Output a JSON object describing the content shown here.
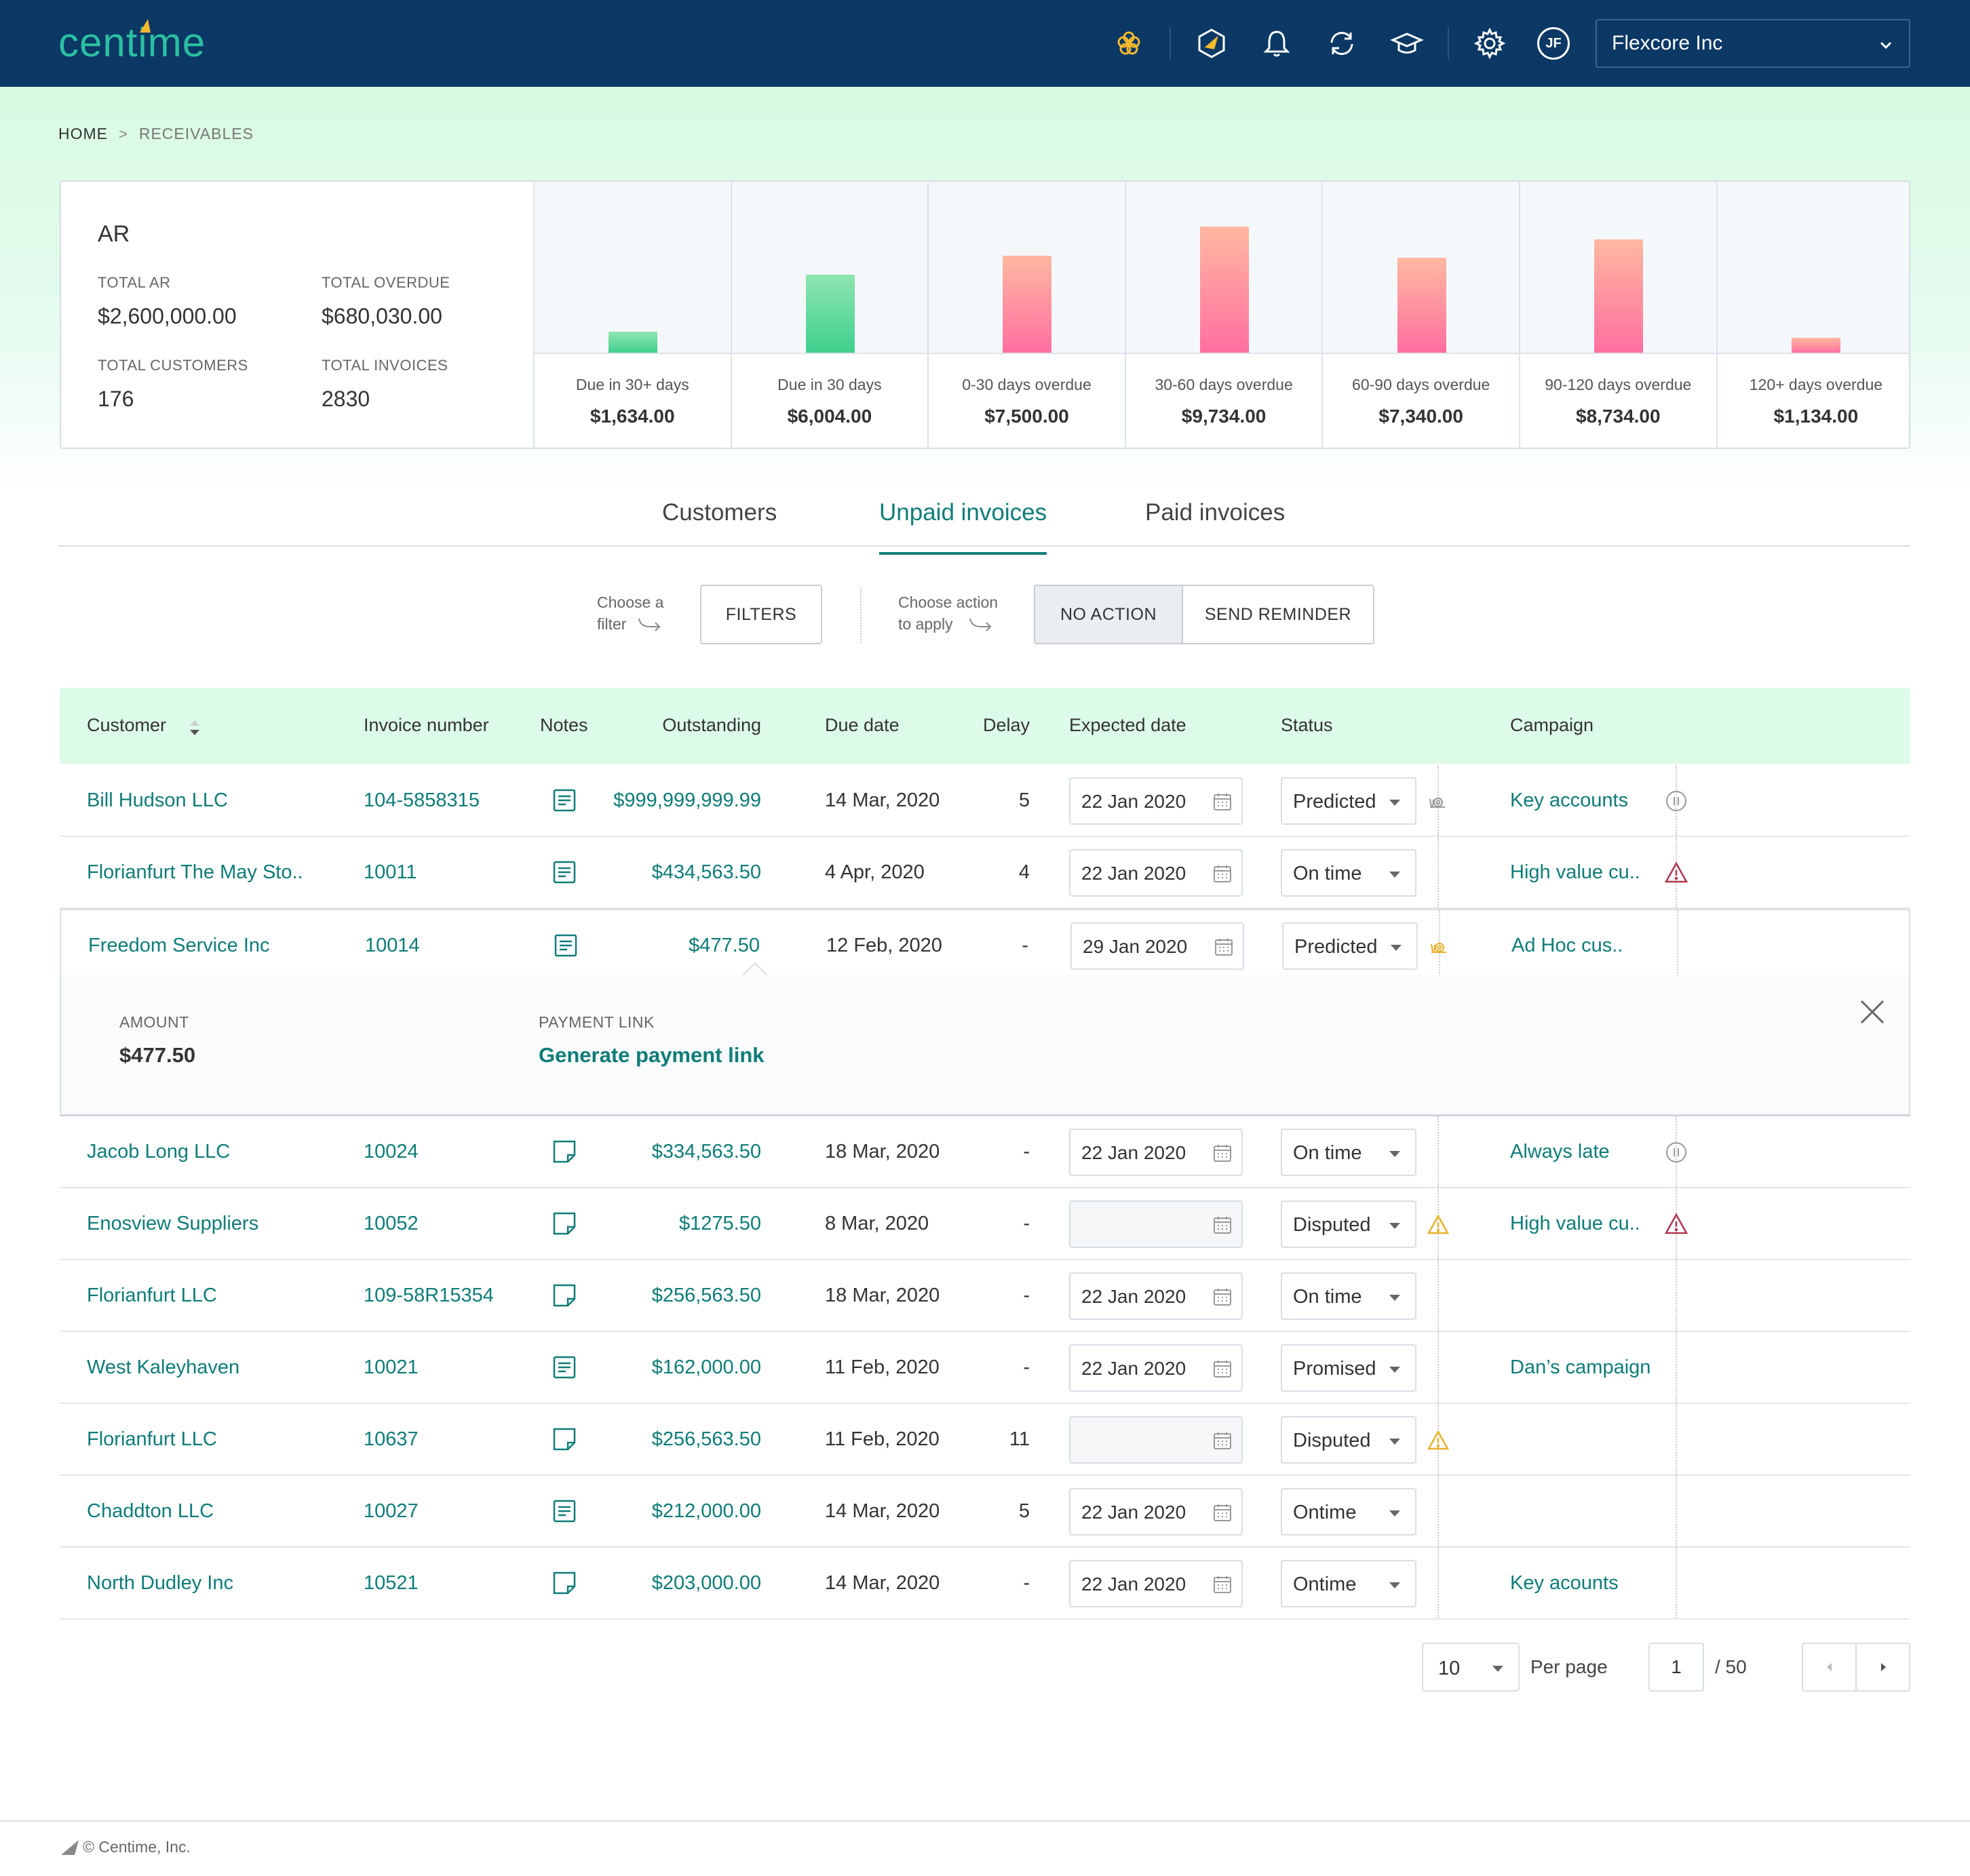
{
  "app": {
    "logo_text": "centime",
    "company": "Flexcore Inc",
    "avatar_initials": "JF",
    "topbar_icons": [
      "flower-icon",
      "megaphone-icon",
      "bell-icon",
      "sync-icon",
      "graduation-cap-icon",
      "gear-icon"
    ]
  },
  "breadcrumb": {
    "home": "HOME",
    "current": "RECEIVABLES"
  },
  "ar": {
    "title": "AR",
    "kpis": [
      {
        "label": "TOTAL AR",
        "value": "$2,600,000.00"
      },
      {
        "label": "TOTAL OVERDUE",
        "value": "$680,030.00"
      },
      {
        "label": "TOTAL CUSTOMERS",
        "value": "176"
      },
      {
        "label": "TOTAL INVOICES",
        "value": "2830"
      }
    ],
    "buckets": [
      {
        "label": "Due in 30+ days",
        "value": "$1,634.00"
      },
      {
        "label": "Due in 30 days",
        "value": "$6,004.00"
      },
      {
        "label": "0-30 days overdue",
        "value": "$7,500.00"
      },
      {
        "label": "30-60 days overdue",
        "value": "$9,734.00"
      },
      {
        "label": "60-90 days overdue",
        "value": "$7,340.00"
      },
      {
        "label": "90-120 days overdue",
        "value": "$8,734.00"
      },
      {
        "label": "120+ days overdue",
        "value": "$1,134.00"
      }
    ]
  },
  "chart_data": {
    "type": "bar",
    "categories": [
      "Due in 30+ days",
      "Due in 30 days",
      "0-30 days overdue",
      "30-60 days overdue",
      "60-90 days overdue",
      "90-120 days overdue",
      "120+ days overdue"
    ],
    "values": [
      1634,
      6004,
      7500,
      9734,
      7340,
      8734,
      1134
    ],
    "colors": [
      "#3fcf8e",
      "#3fcf8e",
      "#ff6fa0",
      "#ff6fa0",
      "#ff6fa0",
      "#ff6fa0",
      "#ff6fa0"
    ],
    "grid": false
  },
  "tabs": [
    {
      "label": "Customers",
      "active": false
    },
    {
      "label": "Unpaid invoices",
      "active": true
    },
    {
      "label": "Paid invoices",
      "active": false
    }
  ],
  "toolbar": {
    "filter_hint_1": "Choose a",
    "filter_hint_2": "filter",
    "filters_label": "FILTERS",
    "action_hint_1": "Choose action",
    "action_hint_2": "to apply",
    "no_action_label": "NO ACTION",
    "send_reminder_label": "SEND REMINDER"
  },
  "table": {
    "columns": [
      "Customer",
      "Invoice number",
      "Notes",
      "Outstanding",
      "Due date",
      "Delay",
      "Expected date",
      "Status",
      "Campaign"
    ],
    "rows": [
      {
        "customer": "Bill Hudson LLC",
        "invoice": "104-5858315",
        "notes": "filled",
        "outstanding": "$999,999,999.99",
        "due": "14 Mar, 2020",
        "delay": "5",
        "expected": "22 Jan 2020",
        "status": "Predicted",
        "status_icon": "snail-gray-icon",
        "campaign": "Key accounts",
        "campaign_icon": "pause-icon"
      },
      {
        "customer": "Florianfurt The May Sto..",
        "invoice": "10011",
        "notes": "filled",
        "outstanding": "$434,563.50",
        "due": "4 Apr, 2020",
        "delay": "4",
        "expected": "22 Jan 2020",
        "status": "On time",
        "status_icon": "",
        "campaign": "High value cu..",
        "campaign_icon": "alert-red-icon"
      },
      {
        "customer": "Freedom Service Inc",
        "invoice": "10014",
        "notes": "filled",
        "outstanding": "$477.50",
        "due": "12 Feb, 2020",
        "delay": "-",
        "expected": "29 Jan 2020",
        "status": "Predicted",
        "status_icon": "snail-yellow-icon",
        "campaign": "Ad Hoc cus..",
        "campaign_icon": ""
      },
      {
        "customer": "Jacob Long LLC",
        "invoice": "10024",
        "notes": "empty",
        "outstanding": "$334,563.50",
        "due": "18 Mar, 2020",
        "delay": "-",
        "expected": "22 Jan 2020",
        "status": "On time",
        "status_icon": "",
        "campaign": "Always late",
        "campaign_icon": "pause-icon"
      },
      {
        "customer": "Enosview Suppliers",
        "invoice": "10052",
        "notes": "empty",
        "outstanding": "$1275.50",
        "due": "8 Mar, 2020",
        "delay": "-",
        "expected": "",
        "status": "Disputed",
        "status_icon": "warning-yellow-icon",
        "campaign": "High value cu..",
        "campaign_icon": "alert-red-icon"
      },
      {
        "customer": "Florianfurt LLC",
        "invoice": "109-58R15354",
        "notes": "empty",
        "outstanding": "$256,563.50",
        "due": "18 Mar, 2020",
        "delay": "-",
        "expected": "22 Jan 2020",
        "status": "On time",
        "status_icon": "",
        "campaign": "",
        "campaign_icon": ""
      },
      {
        "customer": "West Kaleyhaven",
        "invoice": "10021",
        "notes": "filled",
        "outstanding": "$162,000.00",
        "due": "11 Feb, 2020",
        "delay": "-",
        "expected": "22 Jan 2020",
        "status": "Promised",
        "status_icon": "",
        "campaign": "Dan’s campaign",
        "campaign_icon": ""
      },
      {
        "customer": "Florianfurt LLC",
        "invoice": "10637",
        "notes": "empty",
        "outstanding": "$256,563.50",
        "due": "11 Feb, 2020",
        "delay": "11",
        "expected": "",
        "status": "Disputed",
        "status_icon": "warning-yellow-icon",
        "campaign": "",
        "campaign_icon": ""
      },
      {
        "customer": "Chaddton LLC",
        "invoice": "10027",
        "notes": "filled",
        "outstanding": "$212,000.00",
        "due": "14 Mar, 2020",
        "delay": "5",
        "expected": "22 Jan 2020",
        "status": "Ontime",
        "status_icon": "",
        "campaign": "",
        "campaign_icon": ""
      },
      {
        "customer": "North Dudley Inc",
        "invoice": "10521",
        "notes": "empty",
        "outstanding": "$203,000.00",
        "due": "14 Mar, 2020",
        "delay": "-",
        "expected": "22 Jan 2020",
        "status": "Ontime",
        "status_icon": "",
        "campaign": "Key acounts",
        "campaign_icon": ""
      }
    ]
  },
  "expanded": {
    "amount_label": "AMOUNT",
    "amount_value": "$477.50",
    "link_label": "PAYMENT LINK",
    "link_text": "Generate payment link"
  },
  "pagination": {
    "per_page": "10",
    "per_page_label": "Per page",
    "page": "1",
    "total": "/ 50"
  },
  "footer": {
    "copyright": "© Centime, Inc."
  },
  "colors": {
    "accent": "#0e7c78",
    "navy": "#0b3864",
    "green_bar": "#3fcf8e",
    "pink_bar": "#ff6fa0"
  }
}
